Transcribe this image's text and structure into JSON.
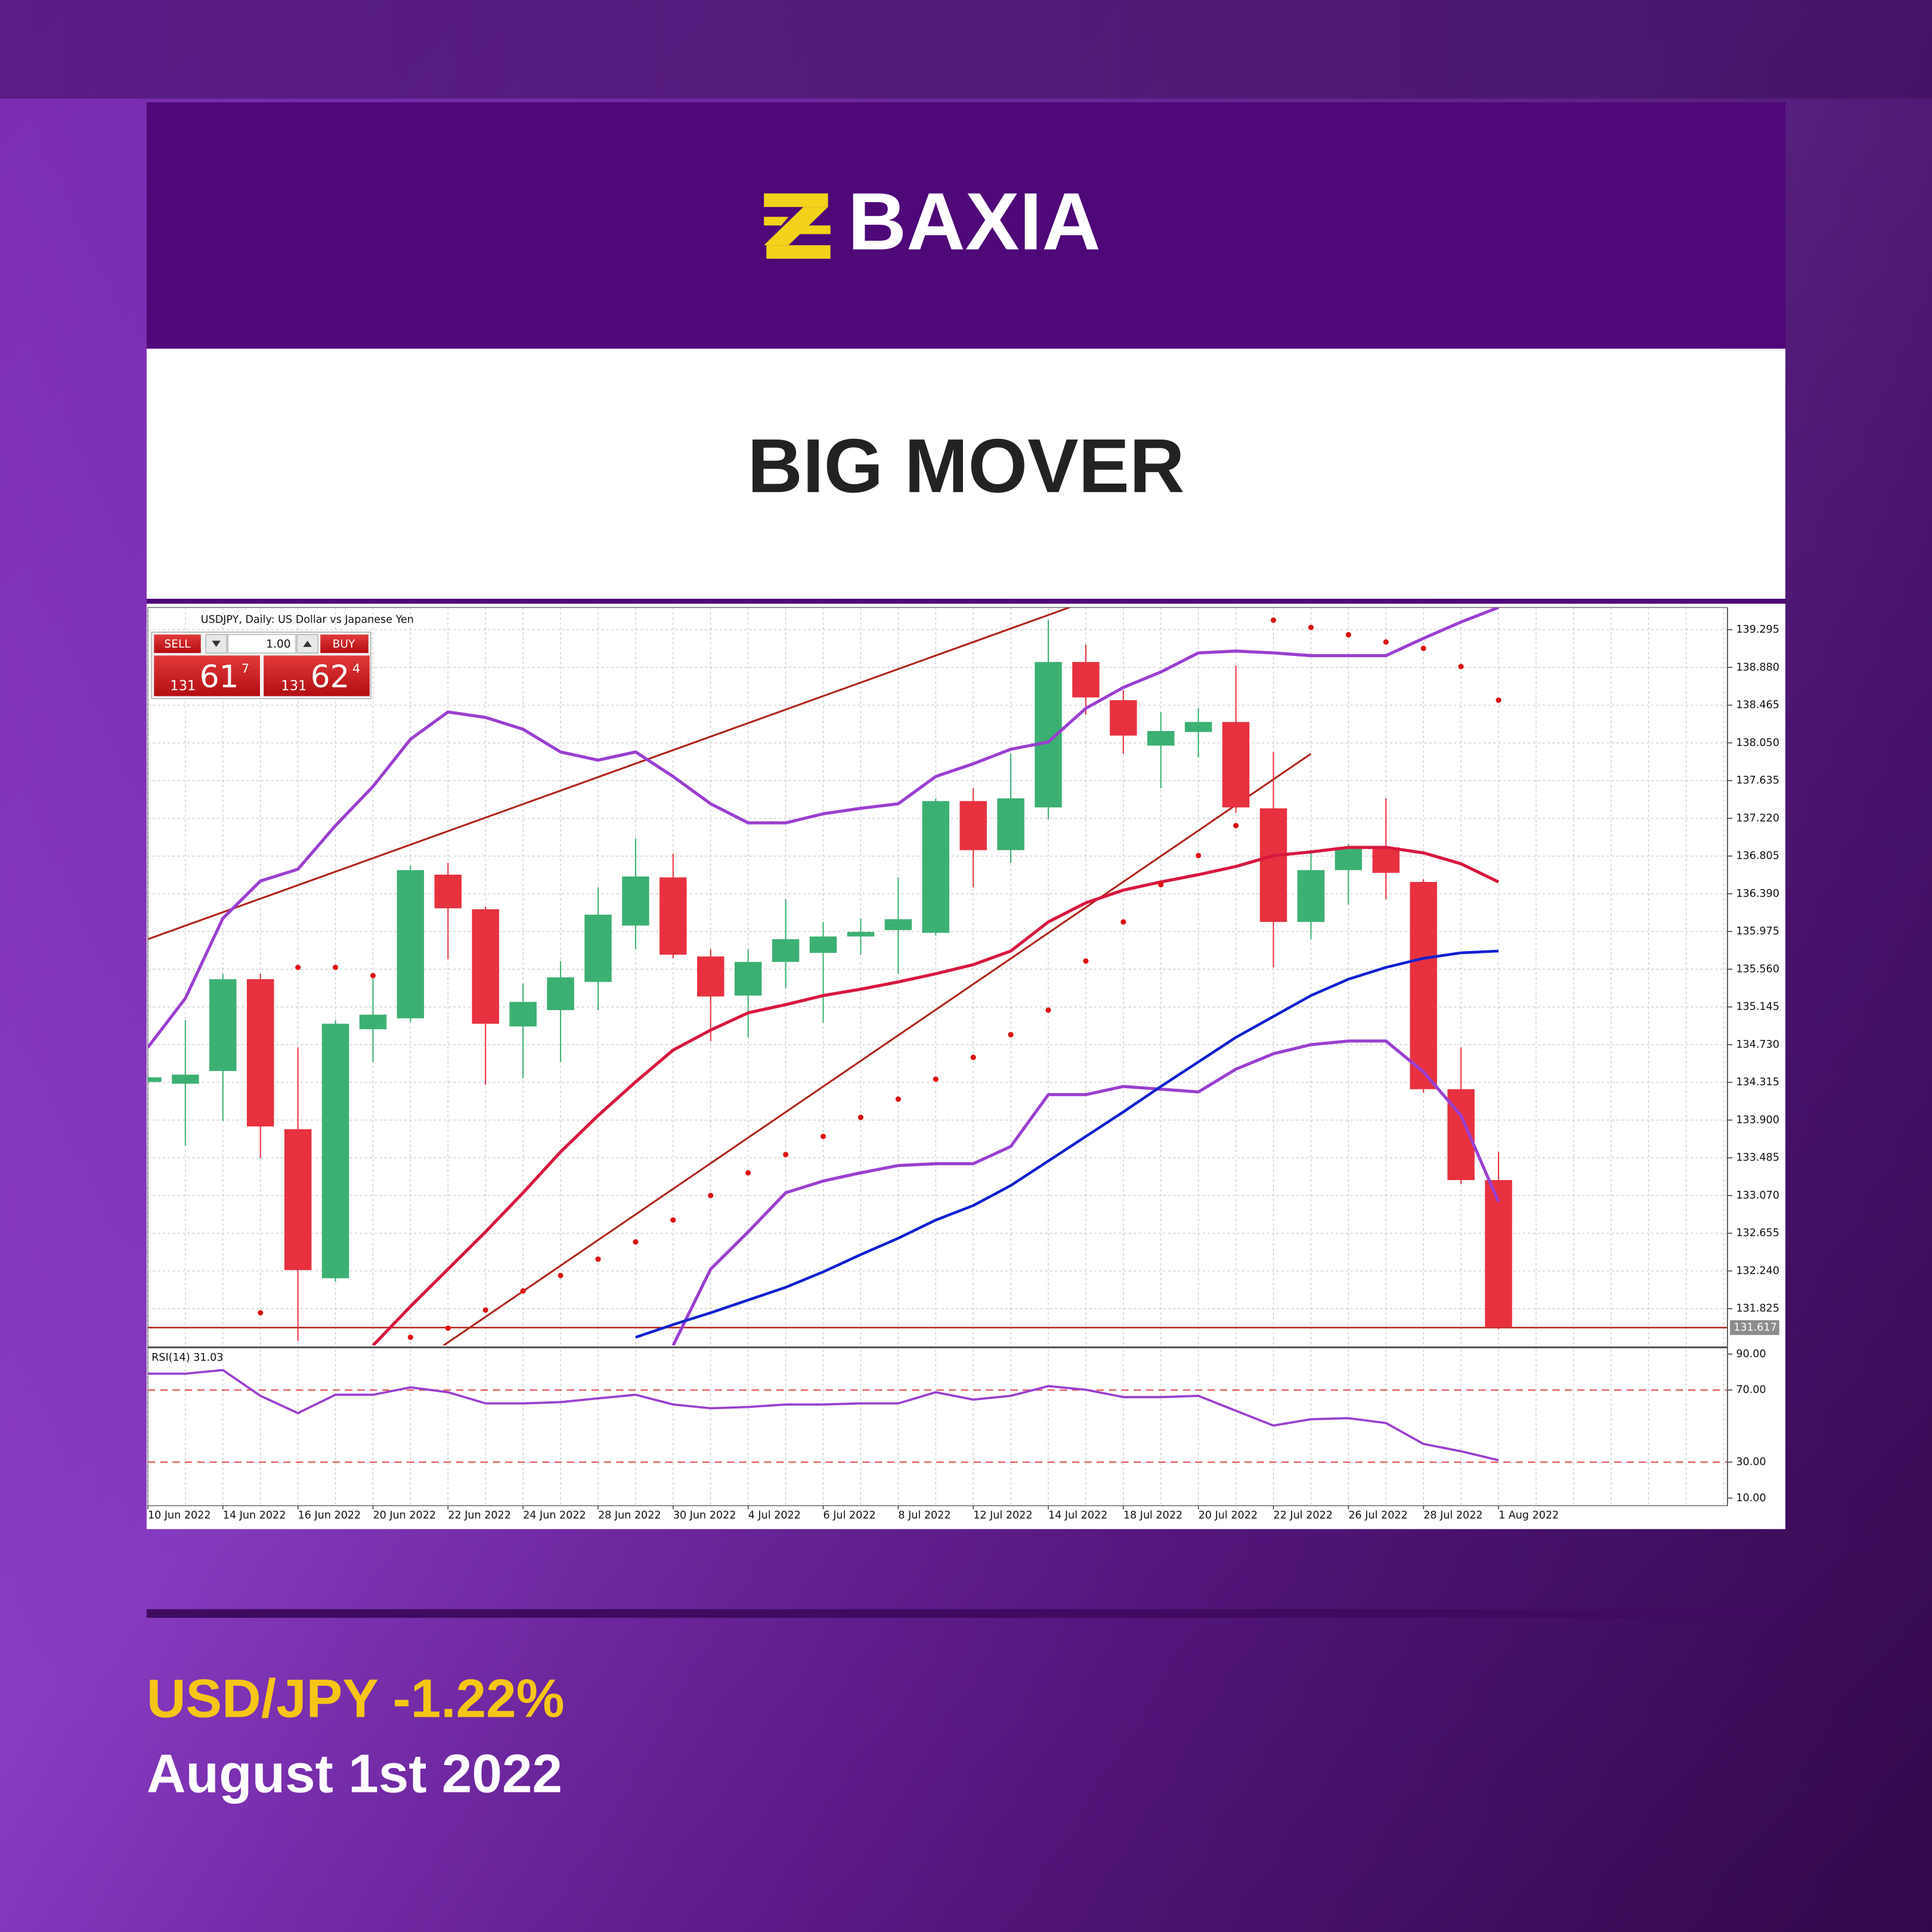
{
  "brand": "BAXIA",
  "headline": "BIG MOVER",
  "footer": {
    "pair_change": "USD/JPY -1.22%",
    "date": "August 1st 2022"
  },
  "trade_panel": {
    "sell": "SELL",
    "buy": "BUY",
    "volume": "1.00",
    "sell_price": [
      "131",
      "61",
      "7"
    ],
    "buy_price": [
      "131",
      "62",
      "4"
    ]
  },
  "chart_data": {
    "type": "candlestick",
    "title": "USDJPY, Daily: US Dollar vs Japanese Yen",
    "categories": [
      "10 Jun 2022",
      null,
      "14 Jun 2022",
      null,
      "16 Jun 2022",
      null,
      "20 Jun 2022",
      null,
      "22 Jun 2022",
      null,
      "24 Jun 2022",
      null,
      "28 Jun 2022",
      null,
      "30 Jun 2022",
      null,
      "4 Jul 2022",
      null,
      "6 Jul 2022",
      null,
      "8 Jul 2022",
      null,
      "12 Jul 2022",
      null,
      "14 Jul 2022",
      null,
      "18 Jul 2022",
      null,
      "20 Jul 2022",
      null,
      "22 Jul 2022",
      null,
      "26 Jul 2022",
      null,
      "28 Jul 2022",
      null,
      "1 Aug 2022"
    ],
    "open": [
      134.32,
      134.3,
      134.44,
      135.45,
      133.8,
      132.16,
      134.9,
      135.02,
      136.6,
      136.22,
      134.93,
      135.11,
      135.42,
      136.04,
      136.57,
      135.7,
      135.27,
      135.64,
      135.74,
      135.92,
      135.99,
      135.96,
      137.41,
      136.87,
      137.34,
      138.94,
      138.52,
      138.02,
      138.17,
      138.28,
      137.33,
      136.08,
      136.65,
      136.9,
      136.52,
      134.24,
      133.24
    ],
    "high": [
      134.4,
      135.0,
      135.51,
      135.51,
      134.7,
      135.0,
      135.51,
      136.7,
      136.73,
      136.25,
      135.4,
      135.65,
      136.46,
      137.0,
      136.83,
      135.78,
      135.78,
      136.33,
      136.08,
      136.12,
      136.57,
      137.44,
      137.55,
      137.93,
      139.4,
      139.13,
      138.63,
      138.39,
      138.43,
      138.9,
      137.95,
      136.87,
      136.94,
      137.44,
      136.55,
      134.7,
      133.55
    ],
    "low": [
      134.3,
      133.62,
      133.89,
      133.48,
      131.47,
      132.12,
      134.54,
      134.98,
      135.67,
      134.29,
      134.36,
      134.54,
      135.11,
      135.78,
      135.68,
      134.77,
      134.81,
      135.35,
      134.97,
      135.72,
      135.51,
      135.93,
      136.46,
      136.73,
      137.21,
      138.36,
      137.93,
      137.55,
      137.89,
      137.28,
      135.58,
      135.89,
      136.27,
      136.33,
      134.2,
      133.2,
      131.6
    ],
    "close": [
      134.37,
      134.4,
      135.45,
      133.83,
      132.25,
      134.96,
      135.06,
      136.65,
      136.23,
      134.96,
      135.2,
      135.47,
      136.16,
      136.58,
      135.72,
      135.26,
      135.64,
      135.89,
      135.92,
      135.97,
      136.11,
      137.41,
      136.87,
      137.44,
      138.94,
      138.55,
      138.13,
      138.18,
      138.28,
      137.34,
      136.08,
      136.65,
      136.9,
      136.62,
      134.24,
      133.24,
      131.62
    ],
    "up_color": "#3cb073",
    "down_color": "#e8313f",
    "series": [
      {
        "type": "line",
        "color": "#9a3fd0",
        "width": 2.5,
        "values": [
          134.7,
          135.24,
          136.12,
          136.53,
          136.66,
          137.14,
          137.57,
          138.09,
          138.39,
          138.33,
          138.2,
          137.95,
          137.86,
          137.95,
          137.68,
          137.38,
          137.17,
          137.17,
          137.27,
          137.33,
          137.38,
          137.68,
          137.82,
          137.98,
          138.06,
          138.43,
          138.66,
          138.83,
          139.04,
          139.06,
          139.04,
          139.01,
          139.01,
          139.01,
          139.2,
          139.38,
          139.54
        ]
      },
      {
        "type": "line",
        "color": "#d8173f",
        "width": 2.5,
        "values": [
          null,
          null,
          null,
          null,
          null,
          null,
          131.42,
          131.85,
          132.26,
          132.67,
          133.1,
          133.55,
          133.95,
          134.32,
          134.67,
          134.89,
          135.08,
          135.17,
          135.27,
          135.34,
          135.42,
          135.51,
          135.61,
          135.76,
          136.08,
          136.29,
          136.43,
          136.52,
          136.6,
          136.69,
          136.81,
          136.85,
          136.9,
          136.9,
          136.84,
          136.72,
          136.52
        ]
      },
      {
        "type": "line",
        "color": "#9a3fd0",
        "width": 2.5,
        "values": [
          null,
          null,
          null,
          null,
          null,
          null,
          null,
          null,
          null,
          null,
          null,
          null,
          null,
          null,
          131.42,
          132.26,
          132.67,
          133.1,
          133.23,
          133.32,
          133.4,
          133.42,
          133.42,
          133.61,
          134.18,
          134.18,
          134.27,
          134.24,
          134.21,
          134.46,
          134.63,
          134.73,
          134.77,
          134.77,
          134.43,
          133.95,
          133.0
        ]
      },
      {
        "type": "line",
        "color": "#1020d0",
        "width": 2.2,
        "values": [
          null,
          null,
          null,
          null,
          null,
          null,
          null,
          null,
          null,
          null,
          null,
          null,
          null,
          131.51,
          131.65,
          131.78,
          131.92,
          132.06,
          132.23,
          132.42,
          132.6,
          132.8,
          132.96,
          133.18,
          133.45,
          133.72,
          133.99,
          134.27,
          134.54,
          134.81,
          135.04,
          135.27,
          135.45,
          135.58,
          135.68,
          135.74,
          135.76
        ]
      },
      {
        "type": "dots",
        "color": "#e01010",
        "values": [
          null,
          null,
          null,
          131.78,
          135.58,
          135.58,
          135.49,
          131.51,
          131.61,
          131.81,
          132.02,
          132.19,
          132.37,
          132.56,
          132.8,
          133.07,
          133.32,
          133.52,
          133.72,
          133.93,
          134.13,
          134.35,
          134.59,
          134.84,
          135.11,
          135.65,
          136.08,
          136.49,
          136.81,
          137.14,
          139.4,
          139.32,
          139.24,
          139.16,
          139.09,
          138.89,
          138.52
        ]
      }
    ],
    "trendlines": [
      {
        "color": "#b0241b",
        "x": [
          0,
          24.56
        ],
        "y": [
          135.89,
          139.54
        ]
      },
      {
        "color": "#b0241b",
        "x": [
          7.88,
          31.0
        ],
        "y": [
          131.42,
          137.93
        ]
      }
    ],
    "last_price": 131.617,
    "last_price_color": "#b0241b",
    "ylim": [
      131.42,
      139.54
    ],
    "yticks": [
      139.295,
      {
        "value": 138.88,
        "label": "138.880"
      },
      138.465,
      {
        "value": 138.05,
        "label": "138.050"
      },
      137.635,
      {
        "value": 137.22,
        "label": "137.220"
      },
      136.805,
      {
        "value": 136.39,
        "label": "136.390"
      },
      135.975,
      {
        "value": 135.56,
        "label": "135.560"
      },
      135.145,
      {
        "value": 134.73,
        "label": "134.730"
      },
      134.315,
      {
        "value": 133.9,
        "label": "133.900"
      },
      133.485,
      {
        "value": 133.07,
        "label": "133.070"
      },
      132.655,
      {
        "value": 132.24,
        "label": "132.240"
      },
      131.825
    ],
    "grid": true,
    "rsi": {
      "title": "RSI(14) 31.03",
      "color": "#9a3fd0",
      "level_color": "#e05050",
      "values": [
        79.1,
        79.1,
        81.1,
        66.8,
        57.2,
        67.4,
        67.4,
        71.5,
        68.8,
        62.6,
        62.6,
        63.3,
        65.4,
        67.4,
        62.0,
        59.9,
        60.6,
        62.0,
        62.0,
        62.6,
        62.6,
        68.8,
        64.7,
        66.8,
        72.2,
        70.2,
        66.1,
        66.1,
        66.8,
        58.5,
        50.3,
        53.8,
        54.4,
        51.7,
        40.1,
        36.0,
        31.03
      ],
      "ylim": [
        5.8,
        92.7
      ],
      "yticks": [
        {
          "value": 90,
          "label": "90.00"
        },
        {
          "value": 70,
          "label": "70.00",
          "level": true
        },
        {
          "value": 30,
          "label": "30.00",
          "level": true
        },
        {
          "value": 10,
          "label": "10.00"
        }
      ]
    }
  }
}
